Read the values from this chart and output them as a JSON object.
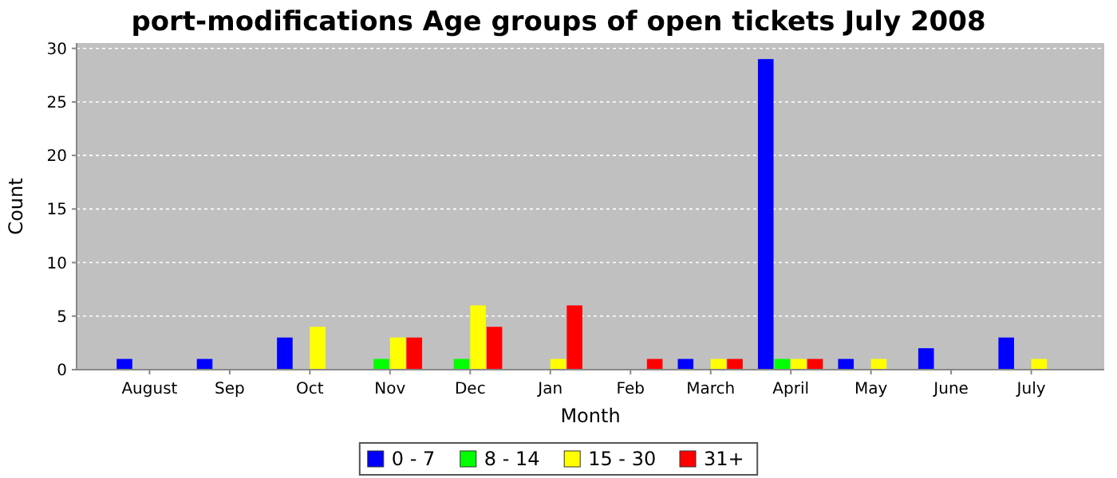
{
  "chart_data": {
    "type": "bar",
    "title": "port-modifications Age groups of open tickets July 2008",
    "xlabel": "Month",
    "ylabel": "Count",
    "categories": [
      "August",
      "Sep",
      "Oct",
      "Nov",
      "Dec",
      "Jan",
      "Feb",
      "March",
      "April",
      "May",
      "June",
      "July"
    ],
    "series": [
      {
        "name": "0 - 7",
        "color": "#0000ff",
        "values": [
          1,
          1,
          3,
          0,
          0,
          0,
          0,
          1,
          29,
          1,
          2,
          3
        ]
      },
      {
        "name": "8 - 14",
        "color": "#00ff00",
        "values": [
          0,
          0,
          0,
          1,
          1,
          0,
          0,
          0,
          1,
          0,
          0,
          0
        ]
      },
      {
        "name": "15 - 30",
        "color": "#ffff00",
        "values": [
          0,
          0,
          4,
          3,
          6,
          1,
          0,
          1,
          1,
          1,
          0,
          1
        ]
      },
      {
        "name": "31+",
        "color": "#ff0000",
        "values": [
          0,
          0,
          0,
          3,
          4,
          6,
          1,
          1,
          1,
          0,
          0,
          0
        ]
      }
    ],
    "ylim": [
      0,
      30.5
    ],
    "yticks": [
      0,
      5,
      10,
      15,
      20,
      25,
      30
    ],
    "grid": "y",
    "legend": "bottom"
  }
}
